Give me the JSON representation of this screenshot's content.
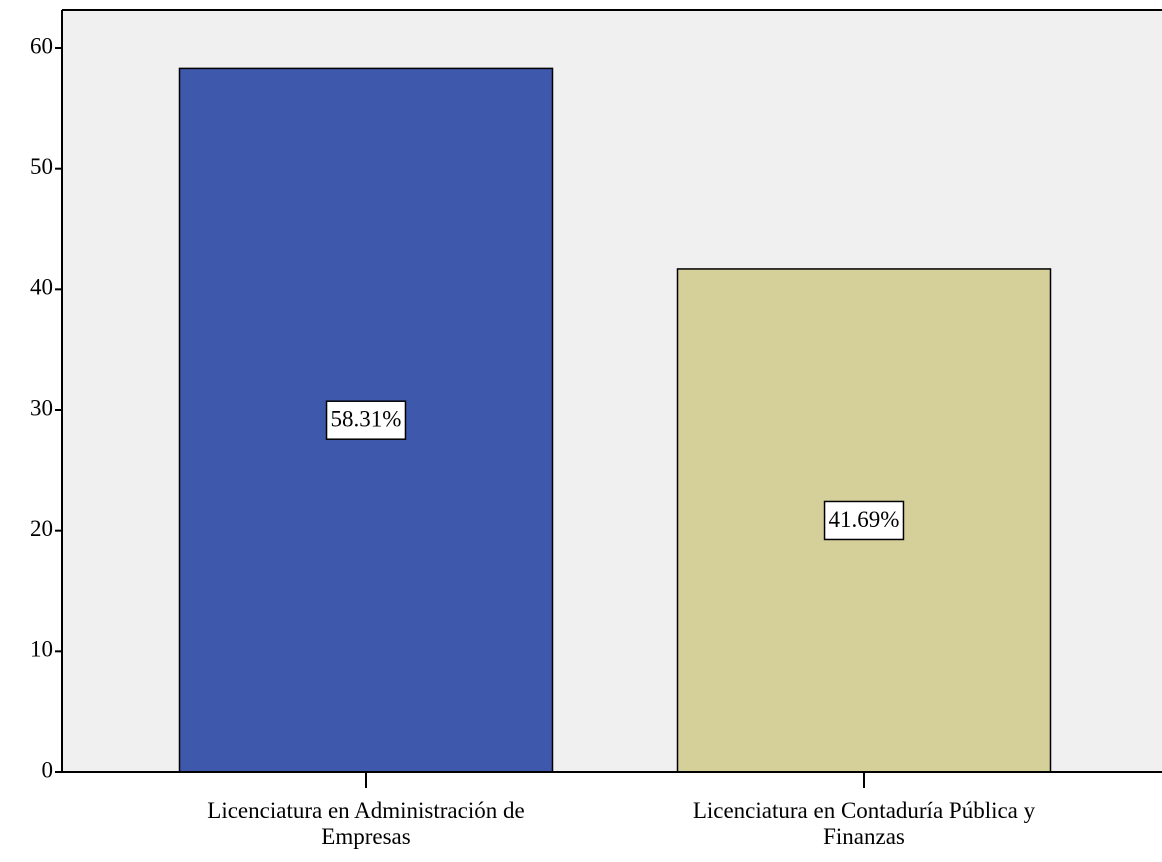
{
  "chart_data": {
    "type": "bar",
    "categories": [
      "Licenciatura en Administración de\nEmpresas",
      "Licenciatura en Contaduría Pública y\nFinanzas"
    ],
    "values": [
      58.31,
      41.69
    ],
    "value_labels": [
      "58.31%",
      "41.69%"
    ],
    "colors": [
      "#3e58ac",
      "#d5cf9a"
    ],
    "ylim": [
      0,
      63.15
    ],
    "yticks": [
      0,
      10,
      20,
      30,
      40,
      50,
      60
    ],
    "grid": false
  }
}
